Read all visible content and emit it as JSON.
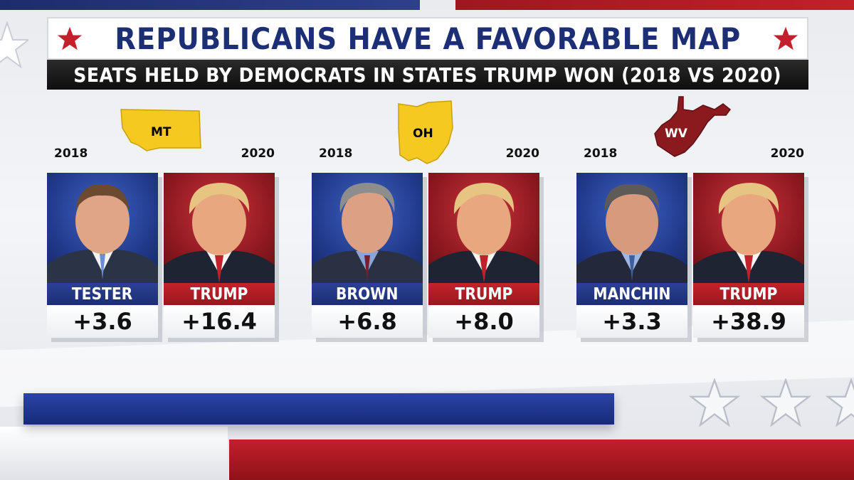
{
  "title": "REPUBLICANS HAVE A FAVORABLE MAP",
  "subtitle": "SEATS HELD BY DEMOCRATS IN STATES TRUMP WON (2018 VS 2020)",
  "colors": {
    "dem_blue": "#1d2e73",
    "gop_red": "#b01b24",
    "title_blue": "#1d2f74",
    "state_yellow": "#f6c920",
    "state_darkred": "#8a1a1e"
  },
  "groups": [
    {
      "state": "MT",
      "left_year": "2018",
      "right_year": "2020",
      "left": {
        "name": "TESTER",
        "margin": "+3.6",
        "party": "dem"
      },
      "right": {
        "name": "TRUMP",
        "margin": "+16.4",
        "party": "gop"
      }
    },
    {
      "state": "OH",
      "left_year": "2018",
      "right_year": "2020",
      "left": {
        "name": "BROWN",
        "margin": "+6.8",
        "party": "dem"
      },
      "right": {
        "name": "TRUMP",
        "margin": "+8.0",
        "party": "gop"
      }
    },
    {
      "state": "WV",
      "left_year": "2018",
      "right_year": "2020",
      "left": {
        "name": "MANCHIN",
        "margin": "+3.3",
        "party": "dem"
      },
      "right": {
        "name": "TRUMP",
        "margin": "+38.9",
        "party": "gop"
      }
    }
  ]
}
